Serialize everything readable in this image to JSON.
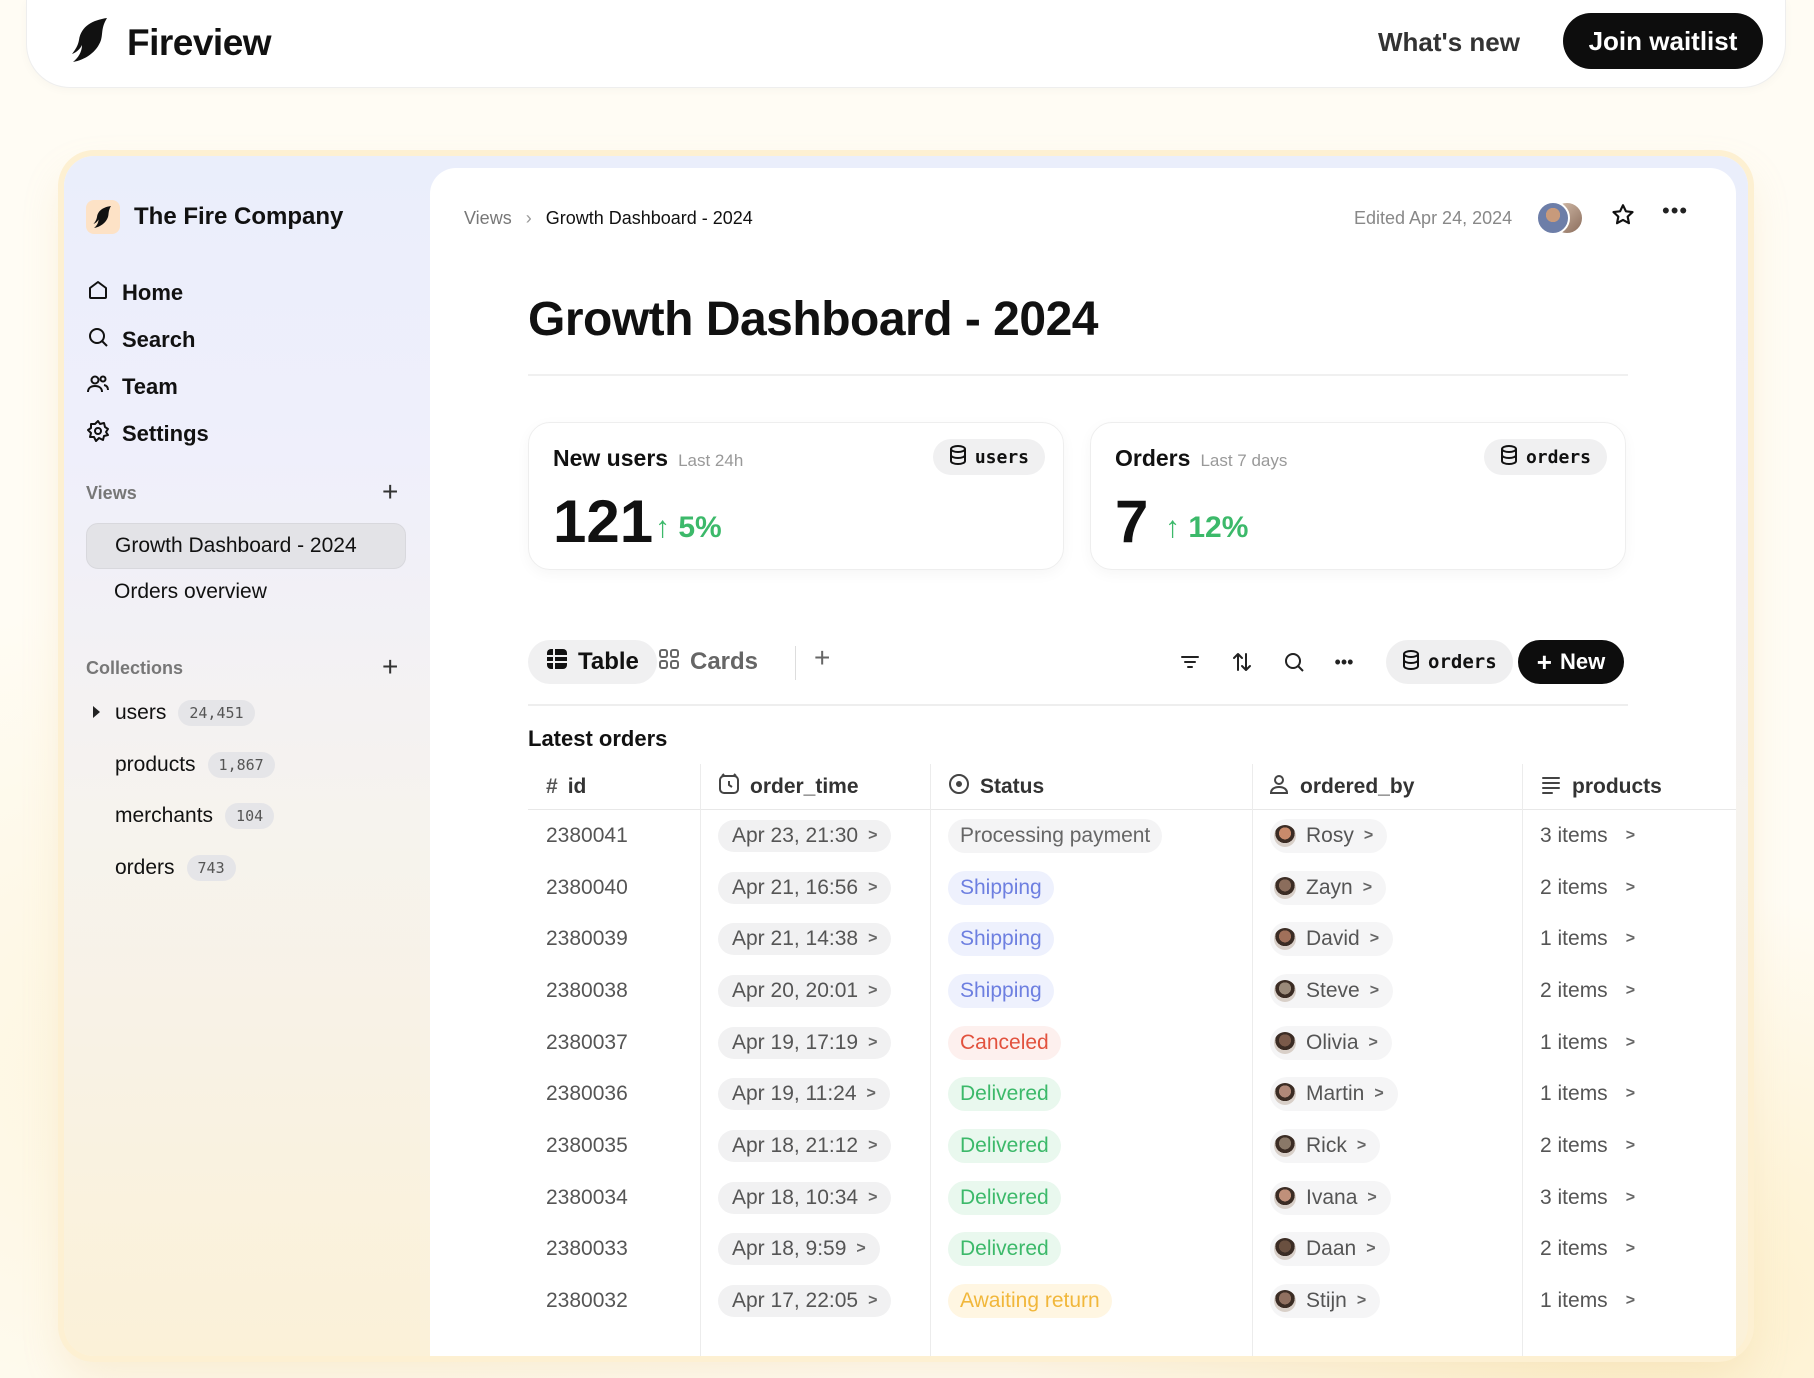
{
  "header": {
    "brand": "Fireview",
    "whats_new": "What's new",
    "join": "Join waitlist"
  },
  "sidebar": {
    "company": "The Fire Company",
    "nav": [
      {
        "label": "Home",
        "icon": "home-icon"
      },
      {
        "label": "Search",
        "icon": "search-icon"
      },
      {
        "label": "Team",
        "icon": "team-icon"
      },
      {
        "label": "Settings",
        "icon": "gear-icon"
      }
    ],
    "views_label": "Views",
    "views": [
      "Growth Dashboard - 2024",
      "Orders overview"
    ],
    "collections_label": "Collections",
    "collections": [
      {
        "name": "users",
        "count": "24,451"
      },
      {
        "name": "products",
        "count": "1,867"
      },
      {
        "name": "merchants",
        "count": "104"
      },
      {
        "name": "orders",
        "count": "743"
      }
    ]
  },
  "main": {
    "breadcrumb": {
      "root": "Views",
      "current": "Growth Dashboard - 2024"
    },
    "edited": "Edited Apr 24, 2024",
    "title": "Growth Dashboard - 2024",
    "metrics": [
      {
        "title": "New users",
        "sub": "Last 24h",
        "source": "users",
        "value": "121",
        "delta": "5%"
      },
      {
        "title": "Orders",
        "sub": "Last 7 days",
        "source": "orders",
        "value": "7",
        "delta": "12%"
      }
    ],
    "tabs": {
      "table": "Table",
      "cards": "Cards"
    },
    "source_pill": "orders",
    "new_button": "New",
    "table_title": "Latest orders",
    "columns": [
      "id",
      "order_time",
      "Status",
      "ordered_by",
      "products"
    ],
    "rows": [
      {
        "id": "2380041",
        "time": "Apr 23, 21:30",
        "status": "Processing payment",
        "status_kind": "proc",
        "user": "Rosy",
        "products": "3 items"
      },
      {
        "id": "2380040",
        "time": "Apr 21, 16:56",
        "status": "Shipping",
        "status_kind": "ship",
        "user": "Zayn",
        "products": "2 items"
      },
      {
        "id": "2380039",
        "time": "Apr 21, 14:38",
        "status": "Shipping",
        "status_kind": "ship",
        "user": "David",
        "products": "1 items"
      },
      {
        "id": "2380038",
        "time": "Apr 20, 20:01",
        "status": "Shipping",
        "status_kind": "ship",
        "user": "Steve",
        "products": "2 items"
      },
      {
        "id": "2380037",
        "time": "Apr 19, 17:19",
        "status": "Canceled",
        "status_kind": "cancel",
        "user": "Olivia",
        "products": "1 items"
      },
      {
        "id": "2380036",
        "time": "Apr 19, 11:24",
        "status": "Delivered",
        "status_kind": "deliv",
        "user": "Martin",
        "products": "1 items"
      },
      {
        "id": "2380035",
        "time": "Apr 18, 21:12",
        "status": "Delivered",
        "status_kind": "deliv",
        "user": "Rick",
        "products": "2 items"
      },
      {
        "id": "2380034",
        "time": "Apr 18, 10:34",
        "status": "Delivered",
        "status_kind": "deliv",
        "user": "Ivana",
        "products": "3 items"
      },
      {
        "id": "2380033",
        "time": "Apr 18, 9:59",
        "status": "Delivered",
        "status_kind": "deliv",
        "user": "Daan",
        "products": "2 items"
      },
      {
        "id": "2380032",
        "time": "Apr 17, 22:05",
        "status": "Awaiting return",
        "status_kind": "await",
        "user": "Stijn",
        "products": "1 items"
      }
    ]
  },
  "colors": {
    "accent": "#0d0d0d",
    "positive": "#3cb96a",
    "shipping": "#6d7fe0",
    "canceled": "#e2523e",
    "awaiting": "#f1b73b"
  }
}
